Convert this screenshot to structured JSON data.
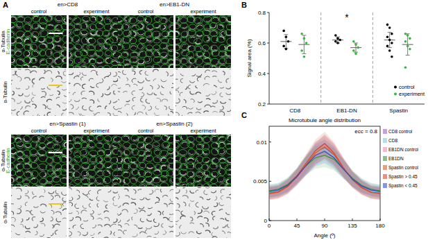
{
  "image_panel": {
    "panel_label": "A",
    "row_labels": {
      "merged": [
        "α-Tubulin",
        "E-cadherin"
      ],
      "single": "α-Tubulin"
    },
    "blocks": [
      [
        {
          "title": "en>CD8",
          "columns": [
            "control",
            "experiment"
          ]
        },
        {
          "title": "en>EB1-DN",
          "columns": [
            "control",
            "experiment"
          ]
        }
      ],
      [
        {
          "title": "en>Spastin (1)",
          "columns": [
            "control",
            "experiment"
          ]
        },
        {
          "title": "en>Spastin (2)",
          "columns": [
            "control",
            "experiment"
          ]
        }
      ]
    ]
  },
  "chart_data": [
    {
      "type": "scatter",
      "panel_label": "B",
      "y_label": "Signal area (%)",
      "categories": [
        "CD8",
        "EB1-DN",
        "Spastin"
      ],
      "ylim": [
        0.2,
        0.8
      ],
      "yticks": [
        0.2,
        0.4,
        0.6,
        0.8
      ],
      "legend": "lower right",
      "annotations": [
        {
          "text": "*",
          "category": "EB1-DN"
        }
      ],
      "series": [
        {
          "name": "control",
          "color": "#000000",
          "values": [
            [
              0.68,
              0.64,
              0.61,
              0.58,
              0.56
            ],
            [
              0.65,
              0.63,
              0.62,
              0.61,
              0.6
            ],
            [
              0.72,
              0.7,
              0.66,
              0.64,
              0.62,
              0.6,
              0.58,
              0.55,
              0.51
            ]
          ],
          "mean": [
            0.61,
            0.62,
            0.62
          ],
          "sd": [
            0.045,
            0.02,
            0.05
          ]
        },
        {
          "name": "experiment",
          "color": "#3cb43c",
          "values": [
            [
              0.66,
              0.63,
              0.6,
              0.55,
              0.51
            ],
            [
              0.61,
              0.59,
              0.57,
              0.55,
              0.53
            ],
            [
              0.66,
              0.65,
              0.63,
              0.61,
              0.58,
              0.56,
              0.44
            ]
          ],
          "mean": [
            0.59,
            0.57,
            0.59
          ],
          "sd": [
            0.06,
            0.03,
            0.07
          ]
        }
      ]
    },
    {
      "type": "line",
      "panel_label": "C",
      "title": "Microtubule angle distribution",
      "x_label": "Angle (º)",
      "annotations": [
        {
          "text": "ecc = 0.8"
        }
      ],
      "x": [
        0,
        15,
        30,
        45,
        60,
        75,
        90,
        105,
        120,
        135,
        150,
        165,
        180
      ],
      "xlim": [
        0,
        180
      ],
      "xticks": [
        0,
        45,
        90,
        135,
        180
      ],
      "ylim": [
        0,
        0.012
      ],
      "yticks": [
        0,
        0.005,
        0.01
      ],
      "legend": "right",
      "series": [
        {
          "name": "CD8 control",
          "color": "#a066c0",
          "values": [
            0.0035,
            0.0037,
            0.0043,
            0.0055,
            0.007,
            0.0085,
            0.0093,
            0.0083,
            0.0068,
            0.0053,
            0.0043,
            0.0037,
            0.0035
          ],
          "sd": [
            0.0008,
            0.0008,
            0.0009,
            0.001,
            0.0012,
            0.0014,
            0.0015,
            0.0014,
            0.0012,
            0.001,
            0.0009,
            0.0008,
            0.0008
          ]
        },
        {
          "name": "CD8",
          "color": "#7ec8e3",
          "values": [
            0.0036,
            0.0038,
            0.0044,
            0.0056,
            0.0072,
            0.0086,
            0.0091,
            0.0082,
            0.0066,
            0.0052,
            0.0042,
            0.0037,
            0.0036
          ],
          "sd": [
            0.0008,
            0.0008,
            0.0009,
            0.001,
            0.0012,
            0.0014,
            0.0015,
            0.0014,
            0.0012,
            0.001,
            0.0009,
            0.0008,
            0.0008
          ]
        },
        {
          "name": "EB1DN control",
          "color": "#e58fb3",
          "values": [
            0.0034,
            0.0036,
            0.0042,
            0.0054,
            0.0069,
            0.0084,
            0.0095,
            0.0085,
            0.0069,
            0.0053,
            0.0042,
            0.0036,
            0.0034
          ],
          "sd": [
            0.0008,
            0.0008,
            0.0009,
            0.001,
            0.0012,
            0.0014,
            0.0015,
            0.0014,
            0.0012,
            0.001,
            0.0009,
            0.0008,
            0.0008
          ]
        },
        {
          "name": "EB1DN",
          "color": "#3a9a3a",
          "values": [
            0.0038,
            0.004,
            0.0046,
            0.0057,
            0.007,
            0.008,
            0.0083,
            0.0078,
            0.0066,
            0.0054,
            0.0045,
            0.004,
            0.0038
          ],
          "sd": [
            0.0008,
            0.0008,
            0.0009,
            0.001,
            0.0012,
            0.0014,
            0.0015,
            0.0014,
            0.0012,
            0.001,
            0.0009,
            0.0008,
            0.0008
          ]
        },
        {
          "name": "Spastin control",
          "color": "#c8642a",
          "values": [
            0.0034,
            0.0036,
            0.0043,
            0.0055,
            0.0071,
            0.0086,
            0.0094,
            0.0084,
            0.0067,
            0.0052,
            0.0042,
            0.0036,
            0.0034
          ],
          "sd": [
            0.0008,
            0.0008,
            0.0009,
            0.001,
            0.0012,
            0.0014,
            0.0015,
            0.0014,
            0.0012,
            0.001,
            0.0009,
            0.0008,
            0.0008
          ]
        },
        {
          "name": "Spastin > 0.45",
          "color": "#e8402a",
          "values": [
            0.0035,
            0.0037,
            0.0044,
            0.0057,
            0.0073,
            0.0089,
            0.0098,
            0.0086,
            0.0068,
            0.0052,
            0.0042,
            0.0036,
            0.0035
          ],
          "sd": [
            0.0008,
            0.0008,
            0.0009,
            0.001,
            0.0012,
            0.0014,
            0.0015,
            0.0014,
            0.0012,
            0.001,
            0.0009,
            0.0008,
            0.0008
          ]
        },
        {
          "name": "Spastin < 0.45",
          "color": "#3050c8",
          "values": [
            0.0037,
            0.0039,
            0.0045,
            0.0056,
            0.007,
            0.0083,
            0.0088,
            0.008,
            0.0066,
            0.0053,
            0.0044,
            0.0039,
            0.0037
          ],
          "sd": [
            0.0008,
            0.0008,
            0.0009,
            0.001,
            0.0012,
            0.0014,
            0.0015,
            0.0014,
            0.0012,
            0.001,
            0.0009,
            0.0008,
            0.0008
          ]
        }
      ]
    }
  ]
}
